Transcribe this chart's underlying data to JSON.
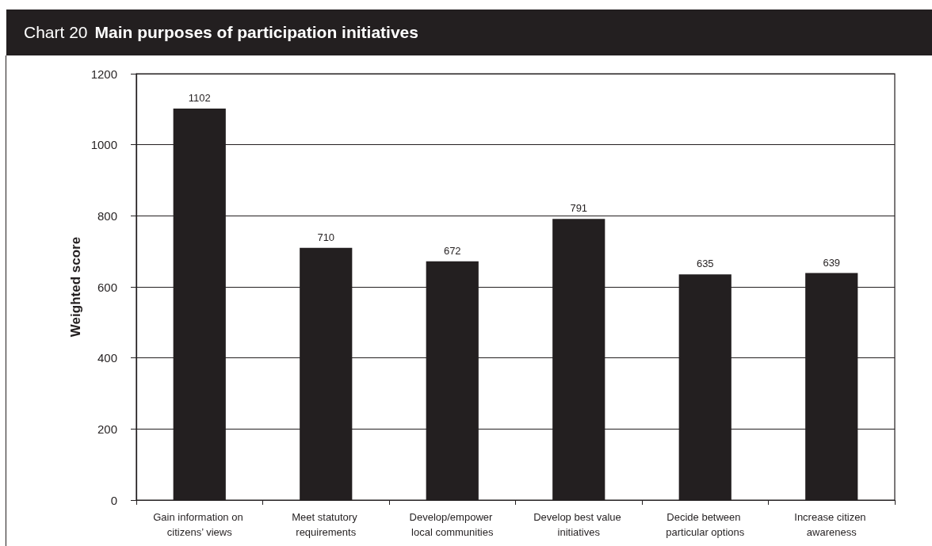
{
  "chart_data": {
    "type": "bar",
    "title": "Chart 20",
    "subtitle": "Main purposes of participation initiatives",
    "ylabel": "Weighted score",
    "categories": [
      "Gain information on citizens’ views",
      "Meet statutory requirements",
      "Develop/empower local communities",
      "Develop best value initiatives",
      "Decide between particular options",
      "Increase citizen awareness"
    ],
    "values": [
      1102,
      710,
      672,
      791,
      635,
      639
    ],
    "color": "#231f20",
    "ylim": [
      0,
      1200
    ],
    "yticks": [
      0,
      200,
      400,
      600,
      800,
      1000,
      1200
    ],
    "grid": "y",
    "data_labels": true
  }
}
